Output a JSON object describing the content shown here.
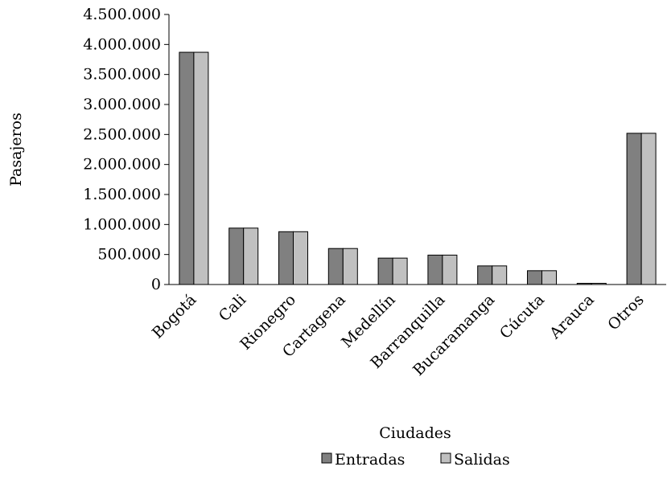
{
  "chart_data": {
    "type": "bar",
    "xlabel": "Ciudades",
    "ylabel": "Pasajeros",
    "ylim": [
      0,
      4500000
    ],
    "y_ticks": [
      {
        "value": 0,
        "label": "0"
      },
      {
        "value": 500000,
        "label": "500.000"
      },
      {
        "value": 1000000,
        "label": "1.000.000"
      },
      {
        "value": 1500000,
        "label": "1.500.000"
      },
      {
        "value": 2000000,
        "label": "2.000.000"
      },
      {
        "value": 2500000,
        "label": "2.500.000"
      },
      {
        "value": 3000000,
        "label": "3.000.000"
      },
      {
        "value": 3500000,
        "label": "3.500.000"
      },
      {
        "value": 4000000,
        "label": "4.000.000"
      },
      {
        "value": 4500000,
        "label": "4.500.000"
      }
    ],
    "categories": [
      "Bogotá",
      "Cali",
      "Rionegro",
      "Cartagena",
      "Medellín",
      "Barranquilla",
      "Bucaramanga",
      "Cúcuta",
      "Arauca",
      "Otros"
    ],
    "series": [
      {
        "name": "Entradas",
        "color": "#808080",
        "values": [
          3870000,
          940000,
          880000,
          600000,
          440000,
          490000,
          310000,
          230000,
          20000,
          2520000
        ]
      },
      {
        "name": "Salidas",
        "color": "#c0c0c0",
        "values": [
          3870000,
          940000,
          880000,
          600000,
          440000,
          490000,
          310000,
          230000,
          20000,
          2520000
        ]
      }
    ],
    "grid": false,
    "legend_position": "bottom"
  }
}
